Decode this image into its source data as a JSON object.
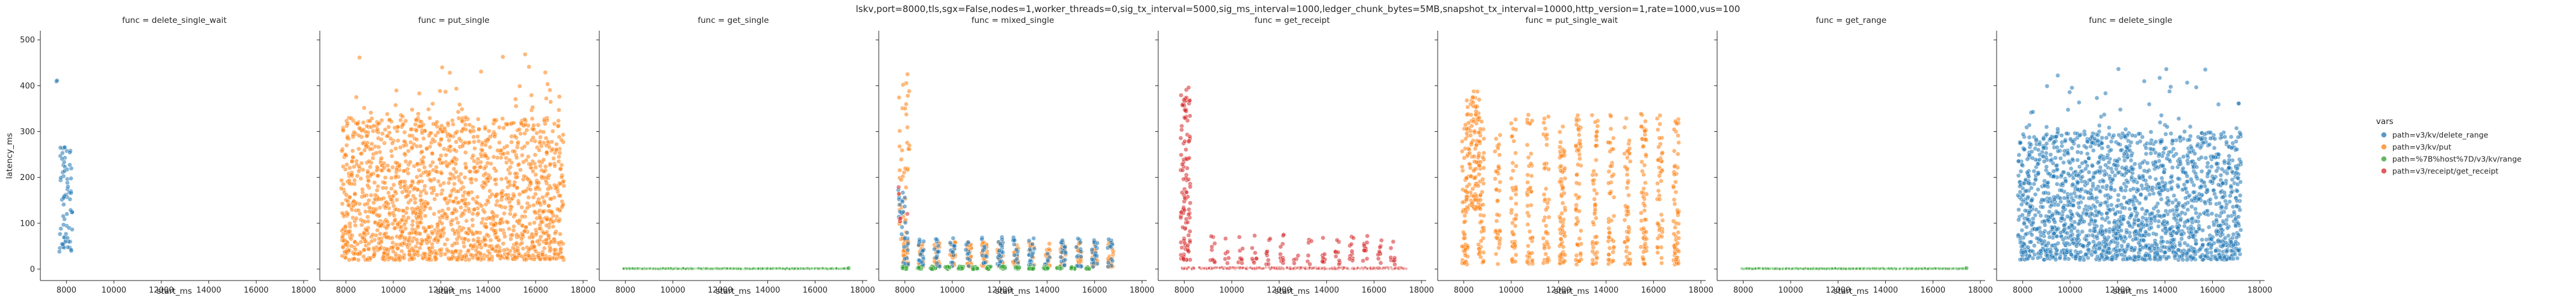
{
  "chart_data": {
    "type": "scatter",
    "title": "lskv,port=8000,tls,sgx=False,nodes=1,worker_threads=0,sig_tx_interval=5000,sig_ms_interval=1000,ledger_chunk_bytes=5MB,snapshot_tx_interval=10000,http_version=1,rate=1000,vus=100",
    "xlabel": "start_ms",
    "ylabel": "latency_ms",
    "xlim": [
      6900,
      18200
    ],
    "ylim": [
      -25,
      520
    ],
    "xticks": [
      8000,
      10000,
      12000,
      14000,
      16000,
      18000
    ],
    "yticks": [
      0,
      100,
      200,
      300,
      400,
      500
    ],
    "grid": false,
    "shared_y": true,
    "legend": {
      "title": "vars",
      "placement": "right",
      "entries": [
        {
          "label": "path=v3/kv/delete_range",
          "color": "#1f77b4"
        },
        {
          "label": "path=v3/kv/put",
          "color": "#ff7f0e"
        },
        {
          "label": "path=%7B%host%7D/v3/kv/range",
          "color": "#2ca02c"
        },
        {
          "label": "path=v3/receipt/get_receipt",
          "color": "#d62728"
        }
      ]
    },
    "panels": [
      {
        "title": "func = delete_single_wait",
        "series": [
          {
            "color": "#1f77b4",
            "clusters": [
              {
                "x": [
                  7700,
                  8250
                ],
                "y": [
                  30,
                  270
                ],
                "n": 70
              },
              {
                "x": [
                  7580,
                  7650
                ],
                "y": [
                  400,
                  415
                ],
                "n": 2
              }
            ]
          }
        ]
      },
      {
        "title": "func = put_single",
        "series": [
          {
            "color": "#ff7f0e",
            "clusters": [
              {
                "x": [
                  7800,
                  17200
                ],
                "y": [
                  20,
                  330
                ],
                "n": 1700
              },
              {
                "x": [
                  7800,
                  17200
                ],
                "y": [
                  330,
                  470
                ],
                "n": 40
              }
            ]
          }
        ]
      },
      {
        "title": "func = get_single",
        "series": [
          {
            "color": "#2ca02c",
            "clusters": [
              {
                "x": [
                  7900,
                  17400
                ],
                "y": [
                  0,
                  2
                ],
                "n": 450,
                "band": true
              },
              {
                "x": [
                  17400,
                  17420
                ],
                "y": [
                  2,
                  3
                ],
                "n": 1
              }
            ]
          }
        ]
      },
      {
        "title": "func = mixed_single",
        "series": [
          {
            "color": "#ff7f0e",
            "clusters": [
              {
                "x": [
                  7700,
                  17000
                ],
                "y": [
                  5,
                  60
                ],
                "n": 300,
                "striped": true
              },
              {
                "x": [
                  7750,
                  8200
                ],
                "y": [
                  60,
                  430
                ],
                "n": 45
              }
            ]
          },
          {
            "color": "#1f77b4",
            "clusters": [
              {
                "x": [
                  7700,
                  17000
                ],
                "y": [
                  5,
                  70
                ],
                "n": 220,
                "striped": true
              },
              {
                "x": [
                  7700,
                  8100
                ],
                "y": [
                  70,
                  180
                ],
                "n": 18
              }
            ]
          },
          {
            "color": "#d62728",
            "clusters": [
              {
                "x": [
                  7700,
                  8200
                ],
                "y": [
                  100,
                  200
                ],
                "n": 6
              }
            ]
          },
          {
            "color": "#2ca02c",
            "clusters": [
              {
                "x": [
                  7700,
                  16000
                ],
                "y": [
                  0,
                  6
                ],
                "n": 160,
                "striped": true
              }
            ]
          }
        ]
      },
      {
        "title": "func = get_receipt",
        "series": [
          {
            "color": "#d62728",
            "clusters": [
              {
                "x": [
                  7850,
                  8250
                ],
                "y": [
                  20,
                  400
                ],
                "n": 110
              },
              {
                "x": [
                  8900,
                  17100
                ],
                "y": [
                  10,
                  75
                ],
                "n": 120,
                "striped": true
              },
              {
                "x": [
                  7900,
                  17400
                ],
                "y": [
                  0,
                  4
                ],
                "n": 380,
                "band": true
              }
            ]
          }
        ]
      },
      {
        "title": "func = put_single_wait",
        "series": [
          {
            "color": "#ff7f0e",
            "clusters": [
              {
                "x": [
                  8100,
                  8700
                ],
                "y": [
                  130,
                  390
                ],
                "n": 110
              },
              {
                "x": [
                  7700,
                  17300
                ],
                "y": [
                  10,
                  340
                ],
                "n": 700,
                "striped": true
              }
            ]
          }
        ]
      },
      {
        "title": "func = get_range",
        "series": [
          {
            "color": "#2ca02c",
            "clusters": [
              {
                "x": [
                  7900,
                  17400
                ],
                "y": [
                  0,
                  2
                ],
                "n": 450,
                "band": true
              },
              {
                "x": [
                  17400,
                  17420
                ],
                "y": [
                  2,
                  3
                ],
                "n": 1
              }
            ]
          }
        ]
      },
      {
        "title": "func = delete_single",
        "series": [
          {
            "color": "#1f77b4",
            "clusters": [
              {
                "x": [
                  7800,
                  17200
                ],
                "y": [
                  20,
                  300
                ],
                "n": 1900
              },
              {
                "x": [
                  7800,
                  17200
                ],
                "y": [
                  300,
                  440
                ],
                "n": 40
              }
            ]
          }
        ]
      }
    ]
  }
}
